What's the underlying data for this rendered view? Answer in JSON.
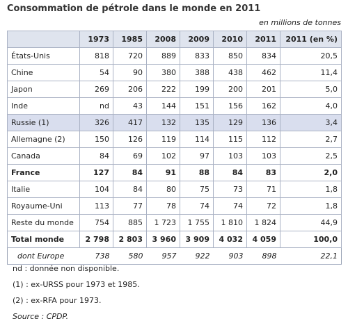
{
  "header": {
    "title": "Consommation de pétrole dans le monde en 2011",
    "unit": "en millions de tonnes"
  },
  "table": {
    "columns": [
      "",
      "1973",
      "1985",
      "2008",
      "2009",
      "2010",
      "2011",
      "2011 (en %)"
    ],
    "rows": [
      [
        "États-Unis",
        "818",
        "720",
        "889",
        "833",
        "850",
        "834",
        "20,5"
      ],
      [
        "Chine",
        "54",
        "90",
        "380",
        "388",
        "438",
        "462",
        "11,4"
      ],
      [
        "Japon",
        "269",
        "206",
        "222",
        "199",
        "200",
        "201",
        "5,0"
      ],
      [
        "Inde",
        "nd",
        "43",
        "144",
        "151",
        "156",
        "162",
        "4,0"
      ],
      [
        "Russie (1)",
        "326",
        "417",
        "132",
        "135",
        "129",
        "136",
        "3,4"
      ],
      [
        "Allemagne (2)",
        "150",
        "126",
        "119",
        "114",
        "115",
        "112",
        "2,7"
      ],
      [
        "Canada",
        "84",
        "69",
        "102",
        "97",
        "103",
        "103",
        "2,5"
      ],
      [
        "France",
        "127",
        "84",
        "91",
        "88",
        "84",
        "83",
        "2,0"
      ],
      [
        "Italie",
        "104",
        "84",
        "80",
        "75",
        "73",
        "71",
        "1,8"
      ],
      [
        "Royaume-Uni",
        "113",
        "77",
        "78",
        "74",
        "74",
        "72",
        "1,8"
      ],
      [
        "Reste du monde",
        "754",
        "885",
        "1 723",
        "1 755",
        "1 810",
        "1 824",
        "44,9"
      ],
      [
        "Total monde",
        "2 798",
        "2 803",
        "3 960",
        "3 909",
        "4 032",
        "4 059",
        "100,0"
      ],
      [
        "dont Europe",
        "738",
        "580",
        "957",
        "922",
        "903",
        "898",
        "22,1"
      ]
    ]
  },
  "notes": [
    "nd : donnée non disponible.",
    "(1) : ex-URSS pour 1973 et 1985.",
    "(2) : ex-RFA pour 1973.",
    "Source : CPDP."
  ]
}
